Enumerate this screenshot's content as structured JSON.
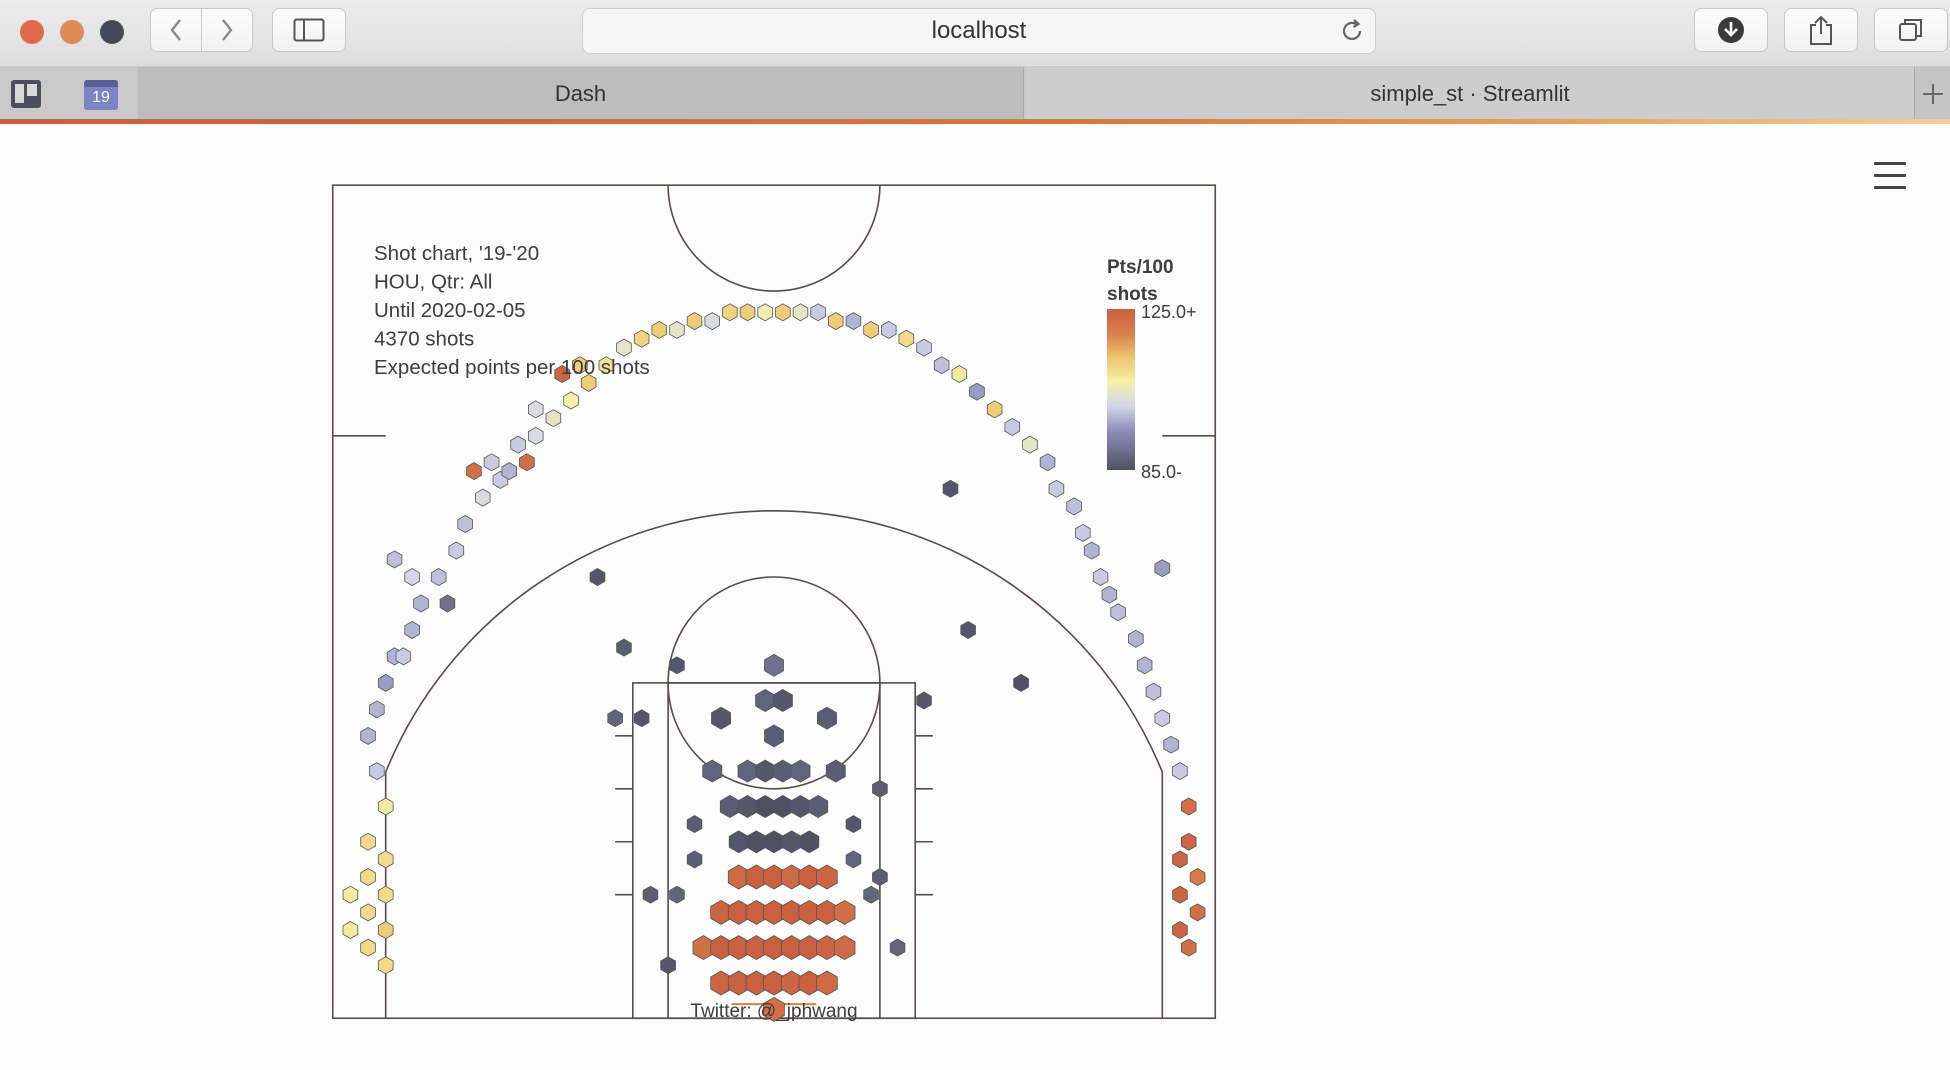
{
  "browser": {
    "url": "localhost",
    "tabs": [
      {
        "label": "Dash",
        "active": true
      },
      {
        "label": "simple_st · Streamlit",
        "active": false
      }
    ],
    "pinned_badge": "19",
    "new_tab_icon": "plus-icon"
  },
  "colors": {
    "low": "#4e5064",
    "mid": "#f6f1a6",
    "high": "#c9603f",
    "court_line": "#5a4a4a"
  },
  "chart_data": {
    "type": "hexbin-shot-chart",
    "annotations": [
      "Shot chart, '19-'20",
      "HOU, Qtr: All",
      "Until 2020-02-05",
      "4370 shots",
      "Expected points per 100 shots"
    ],
    "colorbar": {
      "title_line1": "Pts/100",
      "title_line2": "shots",
      "max_label": "125.0+",
      "min_label": "85.0-",
      "range": [
        85,
        125
      ]
    },
    "credit": "Twitter: @_jphwang",
    "units": "feet, origin at basket",
    "x_range": [
      -25,
      25
    ],
    "y_range": [
      -5,
      42
    ],
    "hexes": [
      [
        -23,
        3,
        110
      ],
      [
        -23,
        1,
        110
      ],
      [
        -23,
        -1,
        110
      ],
      [
        -23,
        5,
        110
      ],
      [
        -22,
        2,
        110
      ],
      [
        -22,
        0,
        112
      ],
      [
        -22,
        4,
        110
      ],
      [
        -22,
        -2,
        110
      ],
      [
        -22,
        7,
        108
      ],
      [
        -24,
        2,
        108
      ],
      [
        -24,
        0,
        108
      ],
      [
        -22.5,
        9,
        100
      ],
      [
        -23,
        11,
        98
      ],
      [
        -22.5,
        12.5,
        98
      ],
      [
        -22,
        14,
        96
      ],
      [
        -21.5,
        15.5,
        98
      ],
      [
        -20.5,
        17,
        98
      ],
      [
        -21,
        15.5,
        100
      ],
      [
        -20,
        18.5,
        98
      ],
      [
        -19,
        20,
        99
      ],
      [
        -18,
        21.5,
        100
      ],
      [
        -18.5,
        18.5,
        90
      ],
      [
        -20.5,
        20,
        101
      ],
      [
        -21.5,
        21,
        99
      ],
      [
        -17.5,
        23,
        99
      ],
      [
        -16.5,
        24.5,
        102
      ],
      [
        -15.5,
        25.5,
        100
      ],
      [
        -17,
        26,
        122
      ],
      [
        -16,
        26.5,
        100
      ],
      [
        -15,
        26,
        98
      ],
      [
        -14.5,
        27.5,
        100
      ],
      [
        -13.5,
        28,
        102
      ],
      [
        -12.5,
        29,
        104
      ],
      [
        -13.5,
        29.5,
        102
      ],
      [
        -14,
        26.5,
        122
      ],
      [
        -11.5,
        30,
        107
      ],
      [
        -10.5,
        31,
        112
      ],
      [
        -9.5,
        32,
        109
      ],
      [
        -8.5,
        33,
        104
      ],
      [
        -11,
        32,
        112
      ],
      [
        -12,
        31.5,
        124
      ],
      [
        -7.5,
        33.5,
        111
      ],
      [
        -6.5,
        34,
        112
      ],
      [
        -5.5,
        34,
        104
      ],
      [
        -4.5,
        34.5,
        112
      ],
      [
        -3.5,
        34.5,
        102
      ],
      [
        -2.5,
        35,
        111
      ],
      [
        -1.5,
        35,
        112
      ],
      [
        -0.5,
        35,
        106
      ],
      [
        0.5,
        35,
        112
      ],
      [
        1.5,
        35,
        104
      ],
      [
        2.5,
        35,
        100
      ],
      [
        3.5,
        34.5,
        112
      ],
      [
        4.5,
        34.5,
        98
      ],
      [
        5.5,
        34,
        112
      ],
      [
        6.5,
        34,
        100
      ],
      [
        7.5,
        33.5,
        110
      ],
      [
        8.5,
        33,
        100
      ],
      [
        9.5,
        32,
        99
      ],
      [
        10.5,
        31.5,
        108
      ],
      [
        11.5,
        30.5,
        96
      ],
      [
        12.5,
        29.5,
        112
      ],
      [
        13.5,
        28.5,
        100
      ],
      [
        14.5,
        27.5,
        104
      ],
      [
        15.5,
        26.5,
        98
      ],
      [
        16,
        25,
        100
      ],
      [
        17,
        24,
        99
      ],
      [
        17.5,
        22.5,
        100
      ],
      [
        18,
        21.5,
        98
      ],
      [
        18.5,
        20,
        100
      ],
      [
        19,
        19,
        98
      ],
      [
        19.5,
        18,
        99
      ],
      [
        20.5,
        16.5,
        98
      ],
      [
        21,
        15,
        98
      ],
      [
        21.5,
        13.5,
        99
      ],
      [
        22,
        12,
        100
      ],
      [
        22.5,
        10.5,
        98
      ],
      [
        23,
        9,
        100
      ],
      [
        22,
        20.5,
        96
      ],
      [
        23.5,
        7,
        122
      ],
      [
        23.5,
        5,
        124
      ],
      [
        23,
        4,
        124
      ],
      [
        23,
        2,
        124
      ],
      [
        23,
        0,
        124
      ],
      [
        23.5,
        -1,
        122
      ],
      [
        24,
        3,
        120
      ],
      [
        24,
        1,
        122
      ],
      [
        -2,
        3,
        123
      ],
      [
        -1,
        3,
        125
      ],
      [
        0,
        3,
        125
      ],
      [
        1,
        3,
        123
      ],
      [
        2,
        3,
        125
      ],
      [
        3,
        3,
        124
      ],
      [
        -3,
        1,
        124
      ],
      [
        -2,
        1,
        125
      ],
      [
        -1,
        1,
        125
      ],
      [
        0,
        1,
        125
      ],
      [
        1,
        1,
        125
      ],
      [
        2,
        1,
        125
      ],
      [
        3,
        1,
        125
      ],
      [
        4,
        1,
        122
      ],
      [
        -4,
        -1,
        122
      ],
      [
        -3,
        -1,
        125
      ],
      [
        -2,
        -1,
        125
      ],
      [
        -1,
        -1,
        125
      ],
      [
        0,
        -1,
        125
      ],
      [
        1,
        -1,
        125
      ],
      [
        2,
        -1,
        125
      ],
      [
        3,
        -1,
        124
      ],
      [
        4,
        -1,
        123
      ],
      [
        -3,
        -3,
        124
      ],
      [
        -2,
        -3,
        125
      ],
      [
        -1,
        -3,
        125
      ],
      [
        0,
        -3,
        125
      ],
      [
        1,
        -3,
        124
      ],
      [
        2,
        -3,
        125
      ],
      [
        3,
        -3,
        123
      ],
      [
        -1.5,
        9,
        88
      ],
      [
        -0.5,
        9,
        86
      ],
      [
        0.5,
        9,
        87
      ],
      [
        1.5,
        9,
        88
      ],
      [
        -2.5,
        7,
        87
      ],
      [
        -1.5,
        7,
        86
      ],
      [
        -0.5,
        7,
        85
      ],
      [
        0.5,
        7,
        85
      ],
      [
        1.5,
        7,
        86
      ],
      [
        2.5,
        7,
        87
      ],
      [
        -2,
        5,
        86
      ],
      [
        -1,
        5,
        85
      ],
      [
        0,
        5,
        85
      ],
      [
        1,
        5,
        86
      ],
      [
        2,
        5,
        85
      ],
      [
        0,
        11,
        87
      ],
      [
        -0.5,
        13,
        88
      ],
      [
        0.5,
        13,
        86
      ],
      [
        0,
        15,
        90
      ],
      [
        -3.5,
        9,
        88
      ],
      [
        3.5,
        9,
        87
      ],
      [
        -4.5,
        4,
        87
      ],
      [
        -5.5,
        2,
        88
      ],
      [
        -4.5,
        6,
        87
      ],
      [
        4.5,
        4,
        88
      ],
      [
        5.5,
        2,
        88
      ],
      [
        4.5,
        6,
        86
      ],
      [
        6,
        8,
        87
      ],
      [
        -7.5,
        12,
        86
      ],
      [
        -8.5,
        16,
        87
      ],
      [
        -10,
        20,
        86
      ],
      [
        -5.5,
        15,
        86
      ],
      [
        8.5,
        13,
        86
      ],
      [
        11,
        17,
        86
      ],
      [
        14,
        14,
        85
      ],
      [
        10,
        25,
        86
      ],
      [
        -9,
        12,
        88
      ],
      [
        3,
        12,
        87
      ],
      [
        -3,
        12,
        86
      ],
      [
        -7,
        2,
        87
      ],
      [
        7,
        -1,
        88
      ],
      [
        -6,
        -2,
        86
      ],
      [
        6,
        3,
        87
      ],
      [
        0,
        -4.5,
        122
      ]
    ]
  }
}
